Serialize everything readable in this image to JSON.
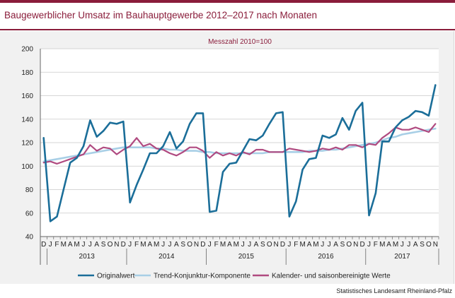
{
  "title": "Baugewerblicher Umsatz im Bauhauptgewerbe 2012–2017 nach Monaten",
  "source": "Statistisches Landesamt Rheinland-Pfalz",
  "colors": {
    "accent": "#8a1d3b",
    "original": "#1b6e99",
    "trend": "#a8cfe6",
    "adjusted": "#b04a80"
  },
  "chart_data": {
    "type": "line",
    "subtitle": "Messzahl 2010=100",
    "ylim": [
      40,
      200
    ],
    "yticks": [
      40,
      60,
      80,
      100,
      120,
      140,
      160,
      180,
      200
    ],
    "grid": true,
    "legend_position": "bottom",
    "month_labels": [
      "D",
      "J",
      "F",
      "M",
      "A",
      "M",
      "J",
      "J",
      "A",
      "S",
      "O",
      "N",
      "D",
      "J",
      "F",
      "M",
      "A",
      "M",
      "J",
      "J",
      "A",
      "S",
      "O",
      "N",
      "D",
      "J",
      "F",
      "M",
      "A",
      "M",
      "J",
      "J",
      "A",
      "S",
      "O",
      "N",
      "D",
      "J",
      "F",
      "M",
      "A",
      "M",
      "J",
      "J",
      "A",
      "S",
      "O",
      "N",
      "D",
      "J",
      "F",
      "M",
      "A",
      "M",
      "J",
      "J",
      "A",
      "S",
      "O",
      "N"
    ],
    "years": [
      {
        "label": "2013",
        "start": 1,
        "end": 12
      },
      {
        "label": "2014",
        "start": 13,
        "end": 24
      },
      {
        "label": "2015",
        "start": 25,
        "end": 36
      },
      {
        "label": "2016",
        "start": 37,
        "end": 48
      },
      {
        "label": "2017",
        "start": 49,
        "end": 59
      }
    ],
    "series": [
      {
        "name": "Originalwert",
        "color": "#1b6e99",
        "values": [
          124,
          53,
          57,
          80,
          103,
          107,
          117,
          139,
          125,
          130,
          137,
          136,
          138,
          69,
          84,
          97,
          111,
          111,
          117,
          129,
          115,
          121,
          136,
          145,
          145,
          61,
          62,
          95,
          102,
          103,
          113,
          123,
          122,
          126,
          136,
          145,
          146,
          57,
          70,
          97,
          106,
          107,
          126,
          124,
          127,
          141,
          131,
          147,
          154,
          58,
          77,
          121,
          121,
          133,
          139,
          142,
          147,
          146,
          143,
          169
        ],
        "legend_label": "Originalwert"
      },
      {
        "name": "Trend-Konjunktur-Komponente",
        "color": "#a8cfe6",
        "values": [
          104,
          105,
          106,
          107,
          108,
          109,
          110,
          111,
          112,
          113,
          114,
          115,
          116,
          116,
          116,
          116,
          116,
          115,
          115,
          114,
          114,
          113,
          113,
          113,
          112,
          112,
          111,
          111,
          111,
          111,
          111,
          111,
          111,
          111,
          112,
          112,
          112,
          112,
          112,
          112,
          113,
          113,
          113,
          114,
          114,
          115,
          116,
          117,
          118,
          119,
          120,
          122,
          124,
          125,
          127,
          128,
          129,
          130,
          131,
          132
        ],
        "legend_label": "Trend-Konjunktur-Komponente"
      },
      {
        "name": "Kalender- und saisonbereinigte Werte",
        "color": "#b04a80",
        "values": [
          103,
          104,
          102,
          104,
          106,
          108,
          110,
          118,
          113,
          116,
          115,
          110,
          114,
          117,
          124,
          117,
          119,
          115,
          114,
          111,
          109,
          112,
          116,
          116,
          113,
          107,
          112,
          109,
          111,
          109,
          112,
          110,
          114,
          114,
          112,
          112,
          112,
          115,
          114,
          113,
          112,
          113,
          115,
          114,
          116,
          114,
          118,
          118,
          116,
          119,
          118,
          124,
          128,
          133,
          131,
          131,
          133,
          131,
          129,
          136
        ],
        "legend_label": "Kalender- und saisonbereinigte Werte"
      }
    ]
  }
}
